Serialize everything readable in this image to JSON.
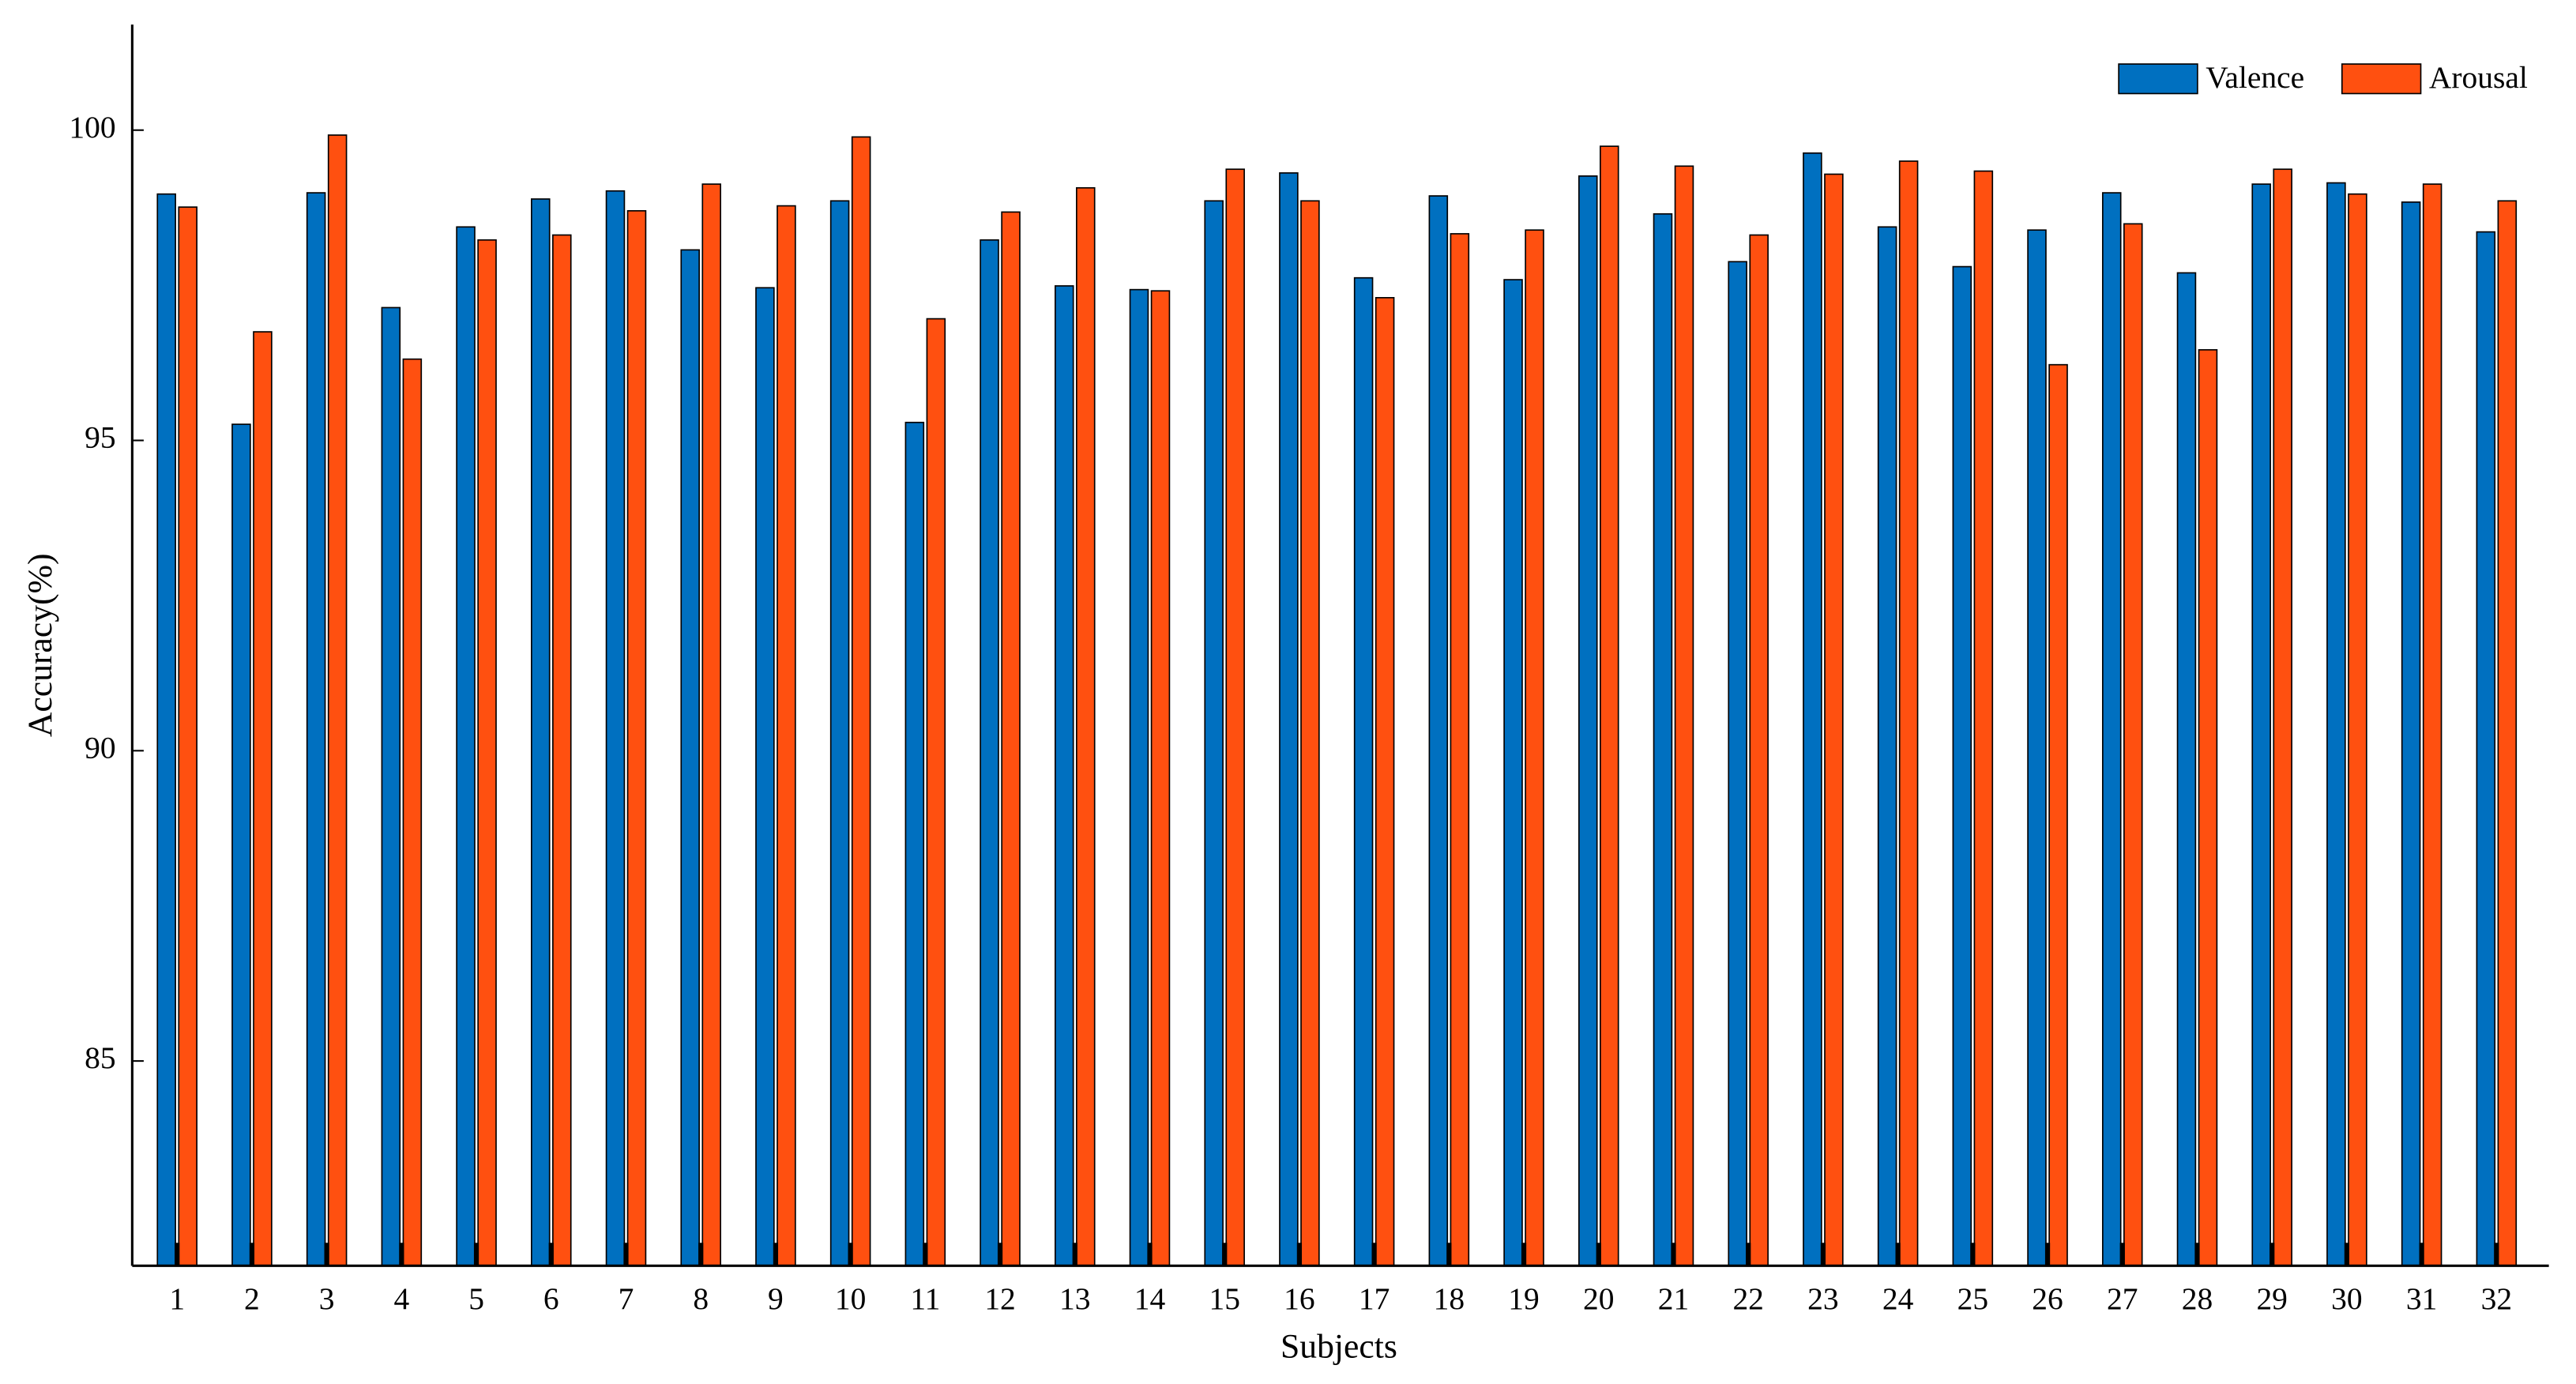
{
  "chart_data": {
    "type": "bar",
    "xlabel": "Subjects",
    "ylabel": "Accuracy(%)",
    "categories": [
      "1",
      "2",
      "3",
      "4",
      "5",
      "6",
      "7",
      "8",
      "9",
      "10",
      "11",
      "12",
      "13",
      "14",
      "15",
      "16",
      "17",
      "18",
      "19",
      "20",
      "21",
      "22",
      "23",
      "24",
      "25",
      "26",
      "27",
      "28",
      "29",
      "30",
      "31",
      "32"
    ],
    "series": [
      {
        "name": "Valence",
        "color": "#0070c0",
        "values": [
          98.97,
          95.26,
          98.99,
          97.14,
          98.44,
          98.89,
          99.02,
          98.07,
          97.46,
          98.86,
          95.29,
          98.23,
          97.49,
          97.43,
          98.86,
          99.31,
          97.62,
          98.94,
          97.59,
          99.26,
          98.65,
          97.88,
          99.63,
          98.44,
          97.8,
          98.39,
          98.99,
          97.7,
          99.13,
          99.15,
          98.84,
          98.36
        ]
      },
      {
        "name": "Arousal",
        "color": "#ff5010",
        "values": [
          98.76,
          96.75,
          99.92,
          96.31,
          98.23,
          98.31,
          98.7,
          99.13,
          98.78,
          99.89,
          96.96,
          98.68,
          99.07,
          97.41,
          99.37,
          98.86,
          97.3,
          98.33,
          98.39,
          99.74,
          99.42,
          98.31,
          99.29,
          99.5,
          99.34,
          96.22,
          98.49,
          96.46,
          99.37,
          98.97,
          99.13,
          98.86
        ]
      }
    ],
    "ylim": [
      81.7,
      101.7
    ],
    "yticks": [
      85,
      90,
      95,
      100
    ],
    "grid": false,
    "legend": "top-right"
  }
}
